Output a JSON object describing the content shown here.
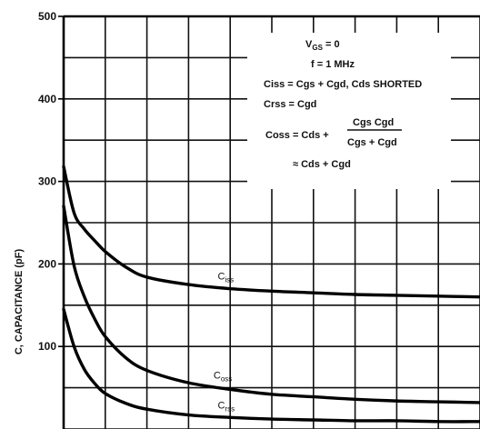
{
  "chart_data": {
    "type": "line",
    "ylabel": "C, CAPACITANCE (pF)",
    "ylim": [
      0,
      500
    ],
    "yticks": [
      {
        "value": 100,
        "label": "100"
      },
      {
        "value": 200,
        "label": "200"
      },
      {
        "value": 300,
        "label": "300"
      },
      {
        "value": 400,
        "label": "400"
      },
      {
        "value": 500,
        "label": "500"
      }
    ],
    "xlim": [
      0,
      10
    ],
    "grid": true,
    "series": [
      {
        "name": "Ciss",
        "label_main": "C",
        "label_sub": "iss",
        "x": [
          0,
          0.25,
          0.5,
          0.75,
          1.0,
          1.5,
          2.0,
          3.0,
          4.0,
          5.0,
          6.0,
          7.0,
          8.0,
          9.0,
          10.0
        ],
        "y": [
          318,
          262,
          242,
          228,
          215,
          196,
          184,
          175,
          170,
          167,
          165,
          163,
          162,
          161,
          160
        ]
      },
      {
        "name": "Coss",
        "label_main": "C",
        "label_sub": "oss",
        "x": [
          0,
          0.25,
          0.5,
          0.75,
          1.0,
          1.5,
          2.0,
          3.0,
          4.0,
          5.0,
          6.0,
          7.0,
          8.0,
          9.0,
          10.0
        ],
        "y": [
          270,
          198,
          160,
          133,
          112,
          86,
          71,
          56,
          48,
          42,
          39,
          36,
          34,
          33,
          32
        ]
      },
      {
        "name": "Crss",
        "label_main": "C",
        "label_sub": "rss",
        "x": [
          0,
          0.25,
          0.5,
          0.75,
          1.0,
          1.5,
          2.0,
          3.0,
          4.0,
          5.0,
          6.0,
          7.0,
          8.0,
          9.0,
          10.0
        ],
        "y": [
          145,
          100,
          72,
          55,
          43,
          31,
          24,
          17,
          14,
          12,
          11,
          10,
          10,
          9,
          9
        ]
      }
    ],
    "annotation": {
      "line1_main": "V",
      "line1_sub": "GS",
      "line1_rest": " = 0",
      "line2": "f = 1 MHz",
      "line3": "Ciss = Cgs + Cgd, Cds SHORTED",
      "line4": "Crss = Cgd",
      "line5_left": "Coss = Cds +",
      "line5_num": "Cgs Cgd",
      "line5_den": "Cgs + Cgd",
      "line6": "≈ Cds + Cgd"
    }
  }
}
